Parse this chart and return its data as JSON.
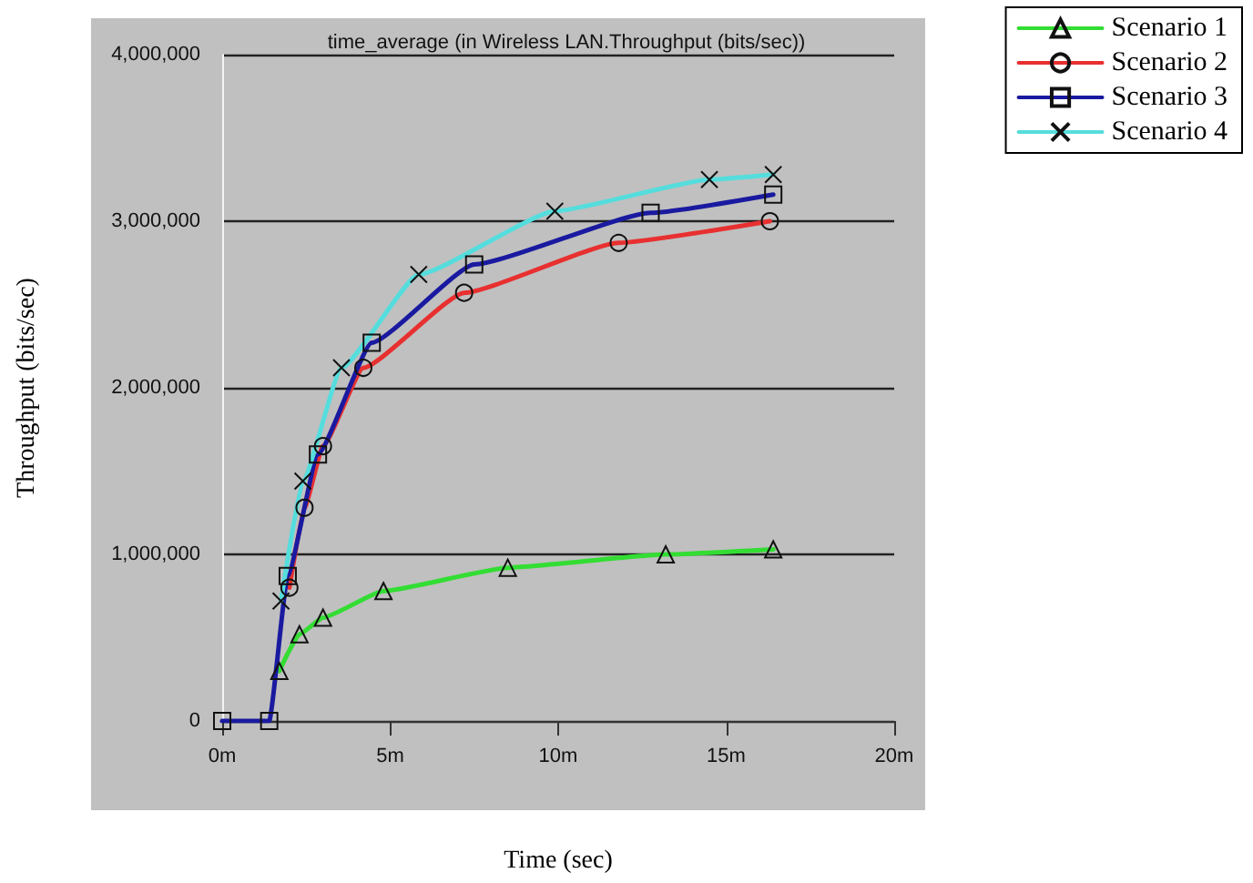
{
  "chart_data": {
    "type": "line",
    "title": "time_average (in Wireless LAN.Throughput (bits/sec))",
    "xlabel": "Time (sec)",
    "ylabel": "Throughput (bits/sec)",
    "xlim": [
      0,
      20
    ],
    "xticks": [
      {
        "value": 0,
        "label": "0m"
      },
      {
        "value": 5,
        "label": "5m"
      },
      {
        "value": 10,
        "label": "10m"
      },
      {
        "value": 15,
        "label": "15m"
      },
      {
        "value": 20,
        "label": "20m"
      }
    ],
    "ylim": [
      0,
      4000000
    ],
    "yticks": [
      {
        "value": 0,
        "label": "0"
      },
      {
        "value": 1000000,
        "label": "1,000,000"
      },
      {
        "value": 2000000,
        "label": "2,000,000"
      },
      {
        "value": 3000000,
        "label": "3,000,000"
      },
      {
        "value": 4000000,
        "label": "4,000,000"
      }
    ],
    "grid": "y",
    "legend": "top right",
    "series": [
      {
        "name": "Scenario 1",
        "color": "#33dd33",
        "marker": "triangle",
        "x": [
          1.7,
          2.3,
          3,
          4.8,
          8.5,
          13.2,
          16.4
        ],
        "values": [
          300000,
          520000,
          620000,
          780000,
          920000,
          1000000,
          1030000
        ]
      },
      {
        "name": "Scenario 2",
        "color": "#e83030",
        "marker": "circle",
        "x": [
          2.0,
          2.45,
          3,
          4.2,
          7.2,
          11.8,
          16.3
        ],
        "values": [
          800000,
          1280000,
          1650000,
          2120000,
          2570000,
          2870000,
          3000000
        ]
      },
      {
        "name": "Scenario 3",
        "color": "#1a1aa0",
        "marker": "square",
        "x": [
          0,
          1.4,
          1.95,
          2.85,
          4.45,
          7.5,
          12.75,
          16.4
        ],
        "values": [
          0,
          0,
          870000,
          1600000,
          2270000,
          2740000,
          3050000,
          3160000
        ]
      },
      {
        "name": "Scenario 4",
        "color": "#55dddd",
        "marker": "cross",
        "x": [
          1.75,
          2.4,
          3.55,
          5.85,
          9.9,
          14.5,
          16.4
        ],
        "values": [
          720000,
          1440000,
          2120000,
          2680000,
          3060000,
          3250000,
          3280000
        ]
      }
    ]
  }
}
